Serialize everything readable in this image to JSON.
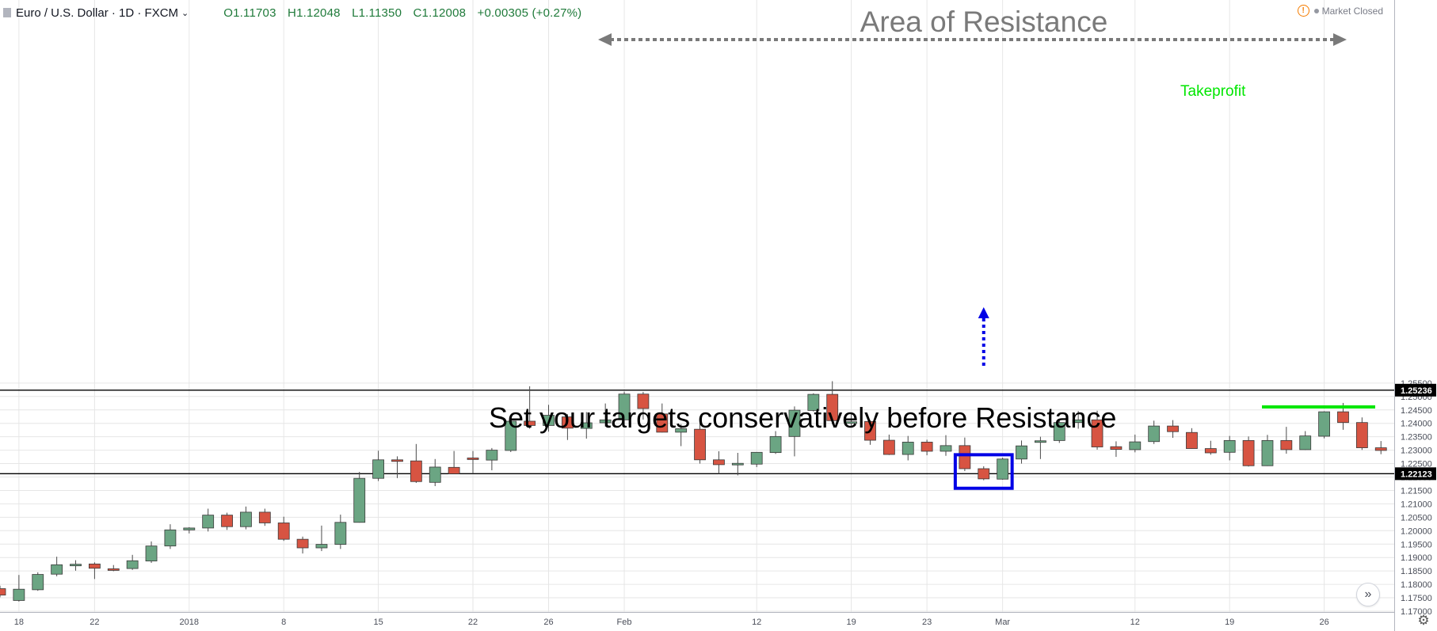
{
  "header": {
    "symbol": "Euro / U.S. Dollar · 1D · FXCM",
    "ohlc": {
      "open": "O1.11703",
      "high": "H1.12048",
      "low": "L1.11350",
      "close": "C1.12008",
      "change": "+0.00305 (+0.27%)"
    },
    "market_status": "Market Closed"
  },
  "chart_data": {
    "type": "candlestick",
    "title": "",
    "xlabel": "",
    "ylabel": "",
    "ylim": [
      1.1685,
      1.2583
    ],
    "y_ticks": [
      "1.25500",
      "1.25000",
      "1.24500",
      "1.24000",
      "1.23500",
      "1.23000",
      "1.22500",
      "1.22000",
      "1.21500",
      "1.21000",
      "1.20500",
      "1.20000",
      "1.19500",
      "1.19000",
      "1.18500",
      "1.18000",
      "1.17500",
      "1.17000"
    ],
    "x_labels": [
      {
        "label": "18",
        "i": 1
      },
      {
        "label": "22",
        "i": 5
      },
      {
        "label": "2018",
        "i": 10
      },
      {
        "label": "8",
        "i": 15
      },
      {
        "label": "15",
        "i": 20
      },
      {
        "label": "22",
        "i": 25
      },
      {
        "label": "26",
        "i": 29
      },
      {
        "label": "Feb",
        "i": 33
      },
      {
        "label": "12",
        "i": 40
      },
      {
        "label": "19",
        "i": 45
      },
      {
        "label": "23",
        "i": 49
      },
      {
        "label": "Mar",
        "i": 53
      },
      {
        "label": "12",
        "i": 60
      },
      {
        "label": "19",
        "i": 65
      },
      {
        "label": "26",
        "i": 70
      }
    ],
    "candles": [
      {
        "o": 1.1784,
        "h": 1.1795,
        "l": 1.1752,
        "c": 1.176
      },
      {
        "o": 1.174,
        "h": 1.1835,
        "l": 1.1736,
        "c": 1.1782
      },
      {
        "o": 1.178,
        "h": 1.1845,
        "l": 1.1776,
        "c": 1.1837
      },
      {
        "o": 1.1838,
        "h": 1.1903,
        "l": 1.183,
        "c": 1.1873
      },
      {
        "o": 1.1872,
        "h": 1.189,
        "l": 1.1851,
        "c": 1.1875
      },
      {
        "o": 1.1876,
        "h": 1.1882,
        "l": 1.182,
        "c": 1.186
      },
      {
        "o": 1.1858,
        "h": 1.1872,
        "l": 1.1849,
        "c": 1.1857
      },
      {
        "o": 1.1859,
        "h": 1.191,
        "l": 1.1854,
        "c": 1.1888
      },
      {
        "o": 1.1887,
        "h": 1.196,
        "l": 1.188,
        "c": 1.1943
      },
      {
        "o": 1.1943,
        "h": 1.2024,
        "l": 1.1932,
        "c": 1.2003
      },
      {
        "o": 1.2003,
        "h": 1.2013,
        "l": 1.199,
        "c": 1.201
      },
      {
        "o": 1.201,
        "h": 1.2082,
        "l": 1.1997,
        "c": 1.2058
      },
      {
        "o": 1.2058,
        "h": 1.2067,
        "l": 1.2003,
        "c": 1.2015
      },
      {
        "o": 1.2015,
        "h": 1.209,
        "l": 1.2005,
        "c": 1.2069
      },
      {
        "o": 1.2069,
        "h": 1.2082,
        "l": 1.2018,
        "c": 1.2029
      },
      {
        "o": 1.2029,
        "h": 1.2052,
        "l": 1.1962,
        "c": 1.1968
      },
      {
        "o": 1.1968,
        "h": 1.1978,
        "l": 1.1915,
        "c": 1.1936
      },
      {
        "o": 1.1936,
        "h": 1.2019,
        "l": 1.1924,
        "c": 1.1949
      },
      {
        "o": 1.1949,
        "h": 1.206,
        "l": 1.1932,
        "c": 1.2031
      },
      {
        "o": 1.2031,
        "h": 1.2219,
        "l": 1.203,
        "c": 1.2195
      },
      {
        "o": 1.2195,
        "h": 1.2298,
        "l": 1.2185,
        "c": 1.2264
      },
      {
        "o": 1.2264,
        "h": 1.2277,
        "l": 1.2196,
        "c": 1.226
      },
      {
        "o": 1.226,
        "h": 1.2323,
        "l": 1.2178,
        "c": 1.2183
      },
      {
        "o": 1.218,
        "h": 1.2267,
        "l": 1.2166,
        "c": 1.2237
      },
      {
        "o": 1.2236,
        "h": 1.2297,
        "l": 1.2212,
        "c": 1.2212
      },
      {
        "o": 1.2271,
        "h": 1.2297,
        "l": 1.2212,
        "c": 1.2267
      },
      {
        "o": 1.2263,
        "h": 1.2308,
        "l": 1.2225,
        "c": 1.23
      },
      {
        "o": 1.2299,
        "h": 1.2418,
        "l": 1.2293,
        "c": 1.2408
      },
      {
        "o": 1.2408,
        "h": 1.2538,
        "l": 1.238,
        "c": 1.2392
      },
      {
        "o": 1.2392,
        "h": 1.2469,
        "l": 1.2369,
        "c": 1.243
      },
      {
        "o": 1.2424,
        "h": 1.2434,
        "l": 1.2338,
        "c": 1.2382
      },
      {
        "o": 1.2381,
        "h": 1.2442,
        "l": 1.2343,
        "c": 1.2402
      },
      {
        "o": 1.2402,
        "h": 1.2474,
        "l": 1.2388,
        "c": 1.2413
      },
      {
        "o": 1.2413,
        "h": 1.2518,
        "l": 1.2389,
        "c": 1.2509
      },
      {
        "o": 1.2509,
        "h": 1.2517,
        "l": 1.2414,
        "c": 1.2455
      },
      {
        "o": 1.2435,
        "h": 1.2474,
        "l": 1.2366,
        "c": 1.2367
      },
      {
        "o": 1.2367,
        "h": 1.2397,
        "l": 1.2315,
        "c": 1.238
      },
      {
        "o": 1.2378,
        "h": 1.2405,
        "l": 1.225,
        "c": 1.2264
      },
      {
        "o": 1.2264,
        "h": 1.2296,
        "l": 1.2212,
        "c": 1.2246
      },
      {
        "o": 1.2247,
        "h": 1.229,
        "l": 1.2206,
        "c": 1.2251
      },
      {
        "o": 1.2248,
        "h": 1.2293,
        "l": 1.2237,
        "c": 1.2292
      },
      {
        "o": 1.2291,
        "h": 1.2371,
        "l": 1.2286,
        "c": 1.2351
      },
      {
        "o": 1.2351,
        "h": 1.2463,
        "l": 1.2277,
        "c": 1.2449
      },
      {
        "o": 1.2448,
        "h": 1.2512,
        "l": 1.2444,
        "c": 1.2508
      },
      {
        "o": 1.2508,
        "h": 1.2557,
        "l": 1.2396,
        "c": 1.241
      },
      {
        "o": 1.24,
        "h": 1.2434,
        "l": 1.2384,
        "c": 1.2406
      },
      {
        "o": 1.2407,
        "h": 1.2412,
        "l": 1.232,
        "c": 1.2337
      },
      {
        "o": 1.2337,
        "h": 1.2358,
        "l": 1.2282,
        "c": 1.2284
      },
      {
        "o": 1.2284,
        "h": 1.2353,
        "l": 1.2262,
        "c": 1.233
      },
      {
        "o": 1.233,
        "h": 1.2339,
        "l": 1.2281,
        "c": 1.2296
      },
      {
        "o": 1.2296,
        "h": 1.2356,
        "l": 1.2279,
        "c": 1.2317
      },
      {
        "o": 1.2317,
        "h": 1.2347,
        "l": 1.2222,
        "c": 1.2231
      },
      {
        "o": 1.2231,
        "h": 1.224,
        "l": 1.2188,
        "c": 1.2193
      },
      {
        "o": 1.2192,
        "h": 1.2272,
        "l": 1.219,
        "c": 1.2267
      },
      {
        "o": 1.2267,
        "h": 1.2336,
        "l": 1.225,
        "c": 1.2316
      },
      {
        "o": 1.2329,
        "h": 1.235,
        "l": 1.2267,
        "c": 1.2335
      },
      {
        "o": 1.2336,
        "h": 1.2416,
        "l": 1.2327,
        "c": 1.2403
      },
      {
        "o": 1.2403,
        "h": 1.2446,
        "l": 1.238,
        "c": 1.2413
      },
      {
        "o": 1.2413,
        "h": 1.2447,
        "l": 1.2302,
        "c": 1.2312
      },
      {
        "o": 1.2313,
        "h": 1.2333,
        "l": 1.2275,
        "c": 1.2303
      },
      {
        "o": 1.2302,
        "h": 1.2358,
        "l": 1.2292,
        "c": 1.2331
      },
      {
        "o": 1.2332,
        "h": 1.241,
        "l": 1.2323,
        "c": 1.239
      },
      {
        "o": 1.239,
        "h": 1.2412,
        "l": 1.2346,
        "c": 1.2369
      },
      {
        "o": 1.2366,
        "h": 1.2382,
        "l": 1.2305,
        "c": 1.2306
      },
      {
        "o": 1.2306,
        "h": 1.2335,
        "l": 1.2283,
        "c": 1.229
      },
      {
        "o": 1.2292,
        "h": 1.2353,
        "l": 1.2262,
        "c": 1.2336
      },
      {
        "o": 1.2336,
        "h": 1.2351,
        "l": 1.2239,
        "c": 1.2242
      },
      {
        "o": 1.2242,
        "h": 1.2357,
        "l": 1.2241,
        "c": 1.2336
      },
      {
        "o": 1.2336,
        "h": 1.2387,
        "l": 1.2287,
        "c": 1.2302
      },
      {
        "o": 1.2302,
        "h": 1.2371,
        "l": 1.2301,
        "c": 1.2353
      },
      {
        "o": 1.2352,
        "h": 1.2445,
        "l": 1.2344,
        "c": 1.2443
      },
      {
        "o": 1.2443,
        "h": 1.2476,
        "l": 1.2376,
        "c": 1.2403
      },
      {
        "o": 1.2403,
        "h": 1.2422,
        "l": 1.2301,
        "c": 1.2309
      },
      {
        "o": 1.2309,
        "h": 1.2334,
        "l": 1.2285,
        "c": 1.2299
      }
    ],
    "price_lines": [
      {
        "value": 1.25236,
        "label": "1.25236"
      },
      {
        "value": 1.22123,
        "label": "1.22123"
      }
    ],
    "annotations": {
      "resistance_label": "Area of Resistance",
      "takeprofit_label": "Takeprofit",
      "takeprofit_price": 1.2461,
      "note": "Set your targets conservatively before Resistance",
      "highlight_range": {
        "from_index": 51,
        "to_index": 53,
        "low": 1.2158,
        "high": 1.2283
      }
    },
    "colors": {
      "up": "#6ba583",
      "down": "#d75442",
      "wick": "#4a4a4a",
      "grid": "#e6e6e6",
      "price_line": "#000000",
      "resistance": "#7a7a7a",
      "takeprofit": "#00e600",
      "highlight": "#0000e6"
    }
  }
}
